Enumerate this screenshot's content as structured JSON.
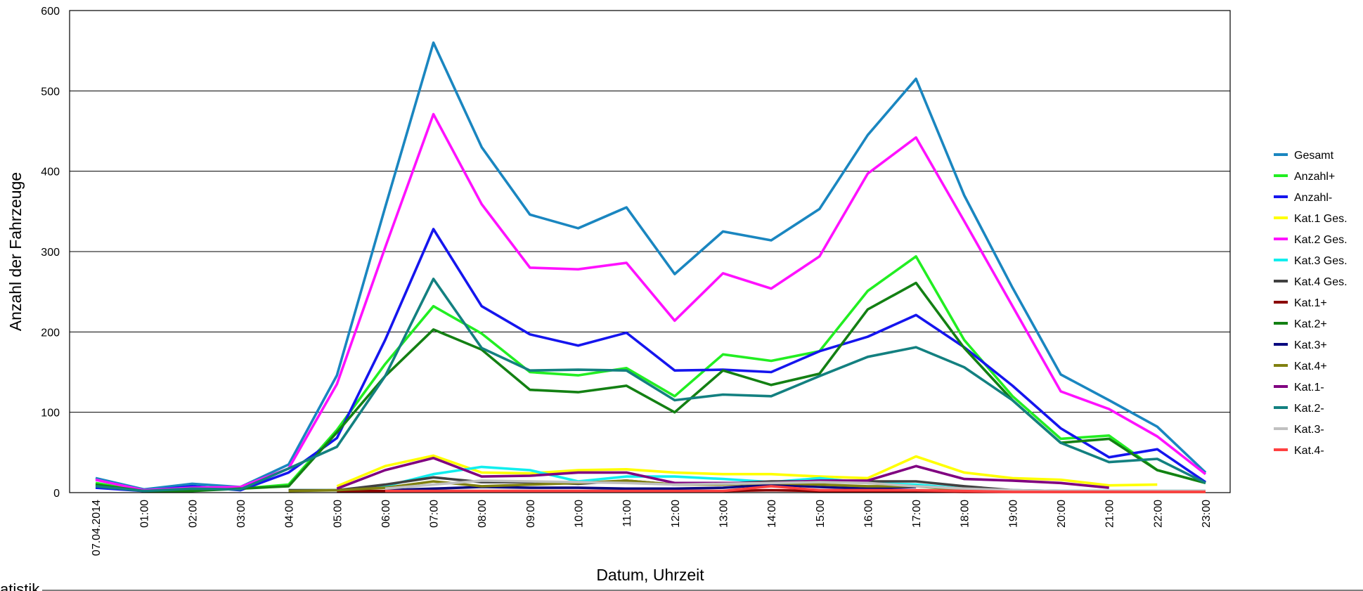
{
  "chart_data": {
    "type": "line",
    "y_label": "Anzahl der Fahrzeuge",
    "x_label": "Datum, Uhrzeit",
    "footer": "atistik",
    "categories": [
      "07.04.2014",
      "01:00",
      "02:00",
      "03:00",
      "04:00",
      "05:00",
      "06:00",
      "07:00",
      "08:00",
      "09:00",
      "10:00",
      "11:00",
      "12:00",
      "13:00",
      "14:00",
      "15:00",
      "16:00",
      "17:00",
      "18:00",
      "19:00",
      "20:00",
      "21:00",
      "22:00",
      "23:00"
    ],
    "ylim": [
      0,
      600
    ],
    "yticks": [
      0,
      100,
      200,
      300,
      400,
      500,
      600
    ],
    "grid": true,
    "legend": "right",
    "series": [
      {
        "name": "Gesamt",
        "color": "#1a86c0",
        "values": [
          18,
          4,
          11,
          7,
          35,
          146,
          355,
          560,
          430,
          346,
          329,
          355,
          272,
          325,
          314,
          353,
          445,
          515,
          370,
          255,
          147,
          115,
          82,
          25
        ]
      },
      {
        "name": "Anzahl+",
        "color": "#22ee22",
        "values": [
          12,
          2,
          3,
          5,
          10,
          78,
          160,
          232,
          198,
          150,
          146,
          155,
          120,
          172,
          164,
          176,
          251,
          294,
          190,
          120,
          67,
          71,
          28,
          12
        ]
      },
      {
        "name": "Anzahl-",
        "color": "#1515ee",
        "values": [
          6,
          2,
          8,
          3,
          25,
          68,
          190,
          328,
          232,
          197,
          183,
          199,
          152,
          153,
          150,
          176,
          194,
          221,
          181,
          133,
          80,
          44,
          54,
          13
        ]
      },
      {
        "name": "Kat.1 Ges.",
        "color": "#ffff00",
        "values": [
          null,
          null,
          null,
          null,
          null,
          8,
          33,
          46,
          25,
          24,
          28,
          29,
          25,
          23,
          23,
          20,
          18,
          45,
          25,
          18,
          16,
          9,
          10,
          null
        ]
      },
      {
        "name": "Kat.2 Ges.",
        "color": "#ff11ff",
        "values": [
          16,
          3,
          6,
          7,
          30,
          135,
          305,
          471,
          359,
          280,
          278,
          286,
          214,
          273,
          254,
          294,
          397,
          442,
          338,
          232,
          126,
          104,
          70,
          23
        ]
      },
      {
        "name": "Kat.3 Ges.",
        "color": "#11eeee",
        "values": [
          null,
          null,
          null,
          null,
          3,
          3,
          8,
          23,
          32,
          28,
          14,
          20,
          20,
          17,
          13,
          18,
          12,
          10,
          5,
          3,
          2,
          2,
          2,
          2
        ]
      },
      {
        "name": "Kat.4 Ges.",
        "color": "#404040",
        "values": [
          null,
          null,
          null,
          null,
          3,
          3,
          10,
          19,
          13,
          13,
          11,
          15,
          10,
          11,
          14,
          14,
          14,
          14,
          8,
          3,
          2,
          2,
          2,
          2
        ]
      },
      {
        "name": "Kat.1+",
        "color": "#8b0000",
        "values": [
          null,
          null,
          null,
          null,
          null,
          2,
          2,
          2,
          2,
          2,
          2,
          2,
          2,
          2,
          3,
          2,
          2,
          2,
          1,
          1,
          1,
          1,
          1,
          1
        ]
      },
      {
        "name": "Kat.2+",
        "color": "#138013",
        "values": [
          10,
          2,
          2,
          5,
          8,
          75,
          145,
          203,
          178,
          128,
          125,
          133,
          100,
          152,
          134,
          148,
          228,
          261,
          180,
          115,
          62,
          67,
          28,
          12
        ]
      },
      {
        "name": "Kat.3+",
        "color": "#0a0a80",
        "values": [
          null,
          null,
          null,
          null,
          null,
          null,
          3,
          5,
          7,
          6,
          6,
          5,
          5,
          6,
          10,
          7,
          5,
          7,
          null,
          null,
          null,
          null,
          null,
          null
        ]
      },
      {
        "name": "Kat.4+",
        "color": "#808010",
        "values": [
          null,
          null,
          null,
          null,
          2,
          3,
          6,
          14,
          8,
          10,
          12,
          15,
          10,
          10,
          12,
          10,
          8,
          8,
          3,
          2,
          1,
          1,
          1,
          1
        ]
      },
      {
        "name": "Kat.1-",
        "color": "#800080",
        "values": [
          null,
          null,
          null,
          null,
          null,
          5,
          28,
          43,
          20,
          21,
          25,
          25,
          12,
          12,
          12,
          15,
          15,
          33,
          17,
          15,
          12,
          6,
          null,
          null
        ]
      },
      {
        "name": "Kat.2-",
        "color": "#138080",
        "values": [
          8,
          2,
          5,
          4,
          30,
          57,
          145,
          266,
          180,
          152,
          153,
          152,
          115,
          122,
          120,
          145,
          169,
          181,
          156,
          115,
          62,
          38,
          42,
          12
        ]
      },
      {
        "name": "Kat.3-",
        "color": "#c0c0c0",
        "values": [
          null,
          null,
          null,
          null,
          null,
          null,
          5,
          10,
          15,
          14,
          13,
          12,
          10,
          11,
          12,
          13,
          12,
          8,
          5,
          3,
          2,
          2,
          2,
          2
        ]
      },
      {
        "name": "Kat.4-",
        "color": "#ff4040",
        "values": [
          null,
          null,
          null,
          null,
          null,
          null,
          2,
          2,
          2,
          2,
          2,
          2,
          2,
          2,
          8,
          3,
          3,
          3,
          2,
          1,
          1,
          1,
          1,
          1
        ]
      }
    ]
  }
}
